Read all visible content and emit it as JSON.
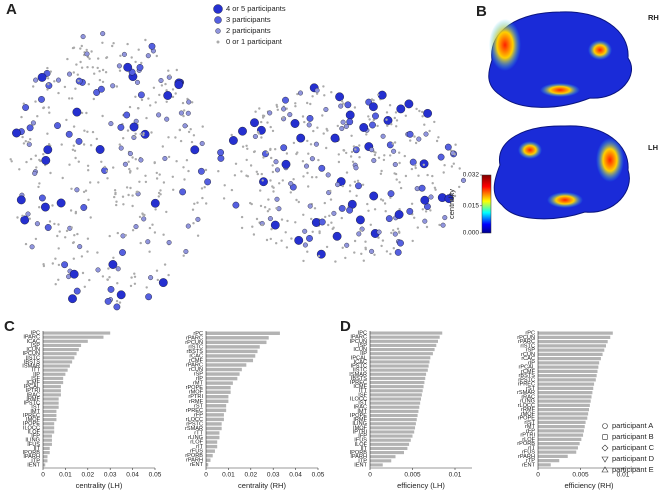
{
  "panels": [
    "A",
    "B",
    "C",
    "D"
  ],
  "panel_a": {
    "legend": [
      "4 or 5 participants",
      "3 participants",
      "2 participants",
      "0 or 1 participant"
    ]
  },
  "panel_b": {
    "hemispheres": [
      "RH",
      "LH"
    ],
    "colorbar": {
      "label": "centrality",
      "lim": [
        0,
        0.032
      ],
      "ticks": [
        {
          "value": 0,
          "label": "0.000"
        },
        {
          "value": 0.015,
          "label": "0.015"
        },
        {
          "value": 0.032,
          "label": "0.032"
        }
      ]
    }
  },
  "participants": [
    "participant A",
    "participant B",
    "participant C",
    "participant D",
    "participant E"
  ],
  "chart_data": [
    {
      "type": "barh",
      "xlabel": "centrality (LH)",
      "color": "#b3b3b3",
      "xlim": [
        0,
        0.05
      ],
      "xticks": [
        0,
        0.01,
        0.02,
        0.03,
        0.04,
        0.05
      ],
      "categories": [
        "IPC",
        "IPARC",
        "ICAC",
        "ISP",
        "ICUN",
        "IPCUN",
        "IISTC",
        "IBSTS",
        "ISMAR",
        "ITT",
        "IIP",
        "ISF",
        "ICMF",
        "IPCAL",
        "IPTRI",
        "IRAC",
        "IRMF",
        "IPSTC",
        "IST",
        "IMT",
        "IPREC",
        "IMOF",
        "IPOPE",
        "ILOCC",
        "ILOF",
        "IFP",
        "ILING",
        "IFUS",
        "IIT",
        "IPORB",
        "IPARH",
        "ITP",
        "IENT"
      ],
      "values": [
        0.03,
        0.027,
        0.02,
        0.017,
        0.016,
        0.015,
        0.014,
        0.013,
        0.012,
        0.011,
        0.01,
        0.009,
        0.009,
        0.008,
        0.008,
        0.008,
        0.007,
        0.007,
        0.007,
        0.006,
        0.006,
        0.006,
        0.005,
        0.005,
        0.005,
        0.004,
        0.004,
        0.004,
        0.003,
        0.003,
        0.002,
        0.002,
        0.001
      ]
    },
    {
      "type": "barh",
      "xlabel": "centrality (RH)",
      "color": "#b3b3b3",
      "xlim": [
        0,
        0.05
      ],
      "xticks": [
        0,
        0.01,
        0.02,
        0.03,
        0.04,
        0.05
      ],
      "categories": [
        "rPC",
        "rPARC",
        "rPCUN",
        "rISTC",
        "rBSTS",
        "rCAC",
        "rCMF",
        "rPARC",
        "rCUN",
        "rSP",
        "rIP",
        "rMT",
        "rPOPE",
        "rMOF",
        "rPTRI",
        "rRMF",
        "rST",
        "rPREC",
        "rFP",
        "rLOCC",
        "rPSTC",
        "rSMAR",
        "rTT",
        "rLING",
        "rLOF",
        "rIT",
        "rFUS",
        "rPORB",
        "rPARH",
        "rENT"
      ],
      "values": [
        0.033,
        0.028,
        0.027,
        0.024,
        0.023,
        0.022,
        0.021,
        0.018,
        0.016,
        0.015,
        0.014,
        0.012,
        0.011,
        0.011,
        0.01,
        0.01,
        0.009,
        0.009,
        0.008,
        0.008,
        0.007,
        0.007,
        0.006,
        0.006,
        0.005,
        0.005,
        0.004,
        0.003,
        0.002,
        0.001
      ]
    },
    {
      "type": "barh",
      "xlabel": "efficiency (LH)",
      "color": "#b3b3b3",
      "xlim": [
        0,
        0.012
      ],
      "xticks": [
        0,
        0.005,
        0.01
      ],
      "categories": [
        "IPC",
        "IPARC",
        "IPCUN",
        "ISP",
        "ICUN",
        "IIP",
        "IPCAL",
        "ICAC",
        "IPSTC",
        "IISTC",
        "ISMAR",
        "IBSTS",
        "IPREC",
        "ICMF",
        "ITT",
        "ISF",
        "ILOCC",
        "IST",
        "IRAC",
        "IMT",
        "IPOPE",
        "IRMF",
        "ILING",
        "IMOF",
        "IPTRI",
        "IFP",
        "IFUS",
        "ILOF",
        "IIT",
        "IPORB",
        "IPARH",
        "ITP",
        "IENT"
      ],
      "values": [
        0.0085,
        0.0082,
        0.008,
        0.0078,
        0.0076,
        0.0074,
        0.0071,
        0.007,
        0.0069,
        0.0068,
        0.0066,
        0.0065,
        0.0064,
        0.0063,
        0.0062,
        0.0061,
        0.006,
        0.0059,
        0.0058,
        0.0057,
        0.0056,
        0.0055,
        0.0054,
        0.0053,
        0.0052,
        0.005,
        0.0048,
        0.0046,
        0.0044,
        0.004,
        0.003,
        0.0025,
        0.0015
      ]
    },
    {
      "type": "barh",
      "xlabel": "efficiency (RH)",
      "color": "#b3b3b3",
      "xlim": [
        0,
        0.012
      ],
      "xticks": [
        0,
        0.005,
        0.01
      ],
      "categories": [
        "rPC",
        "rPCUN",
        "rPARC",
        "rISTC",
        "rSP",
        "rCUN",
        "rCAC",
        "rIP",
        "rPCAL",
        "rCMF",
        "rBSTS",
        "rPSTC",
        "rPREC",
        "rST",
        "rSMAR",
        "rRAC",
        "rLING",
        "rLOCC",
        "rRMF",
        "rMOF",
        "rPOPE",
        "rIST",
        "rMT",
        "rFP",
        "rPTRI",
        "rLOF",
        "rPORB",
        "rIT",
        "rFUS",
        "rPARH",
        "rTP",
        "rENT"
      ],
      "values": [
        0.0088,
        0.0085,
        0.0082,
        0.008,
        0.0078,
        0.0076,
        0.0074,
        0.0072,
        0.0071,
        0.007,
        0.0069,
        0.0068,
        0.0066,
        0.0065,
        0.0064,
        0.0063,
        0.0062,
        0.0061,
        0.006,
        0.0059,
        0.0058,
        0.0056,
        0.0055,
        0.0054,
        0.0053,
        0.0051,
        0.0049,
        0.0047,
        0.0045,
        0.0035,
        0.0025,
        0.0015
      ]
    }
  ]
}
